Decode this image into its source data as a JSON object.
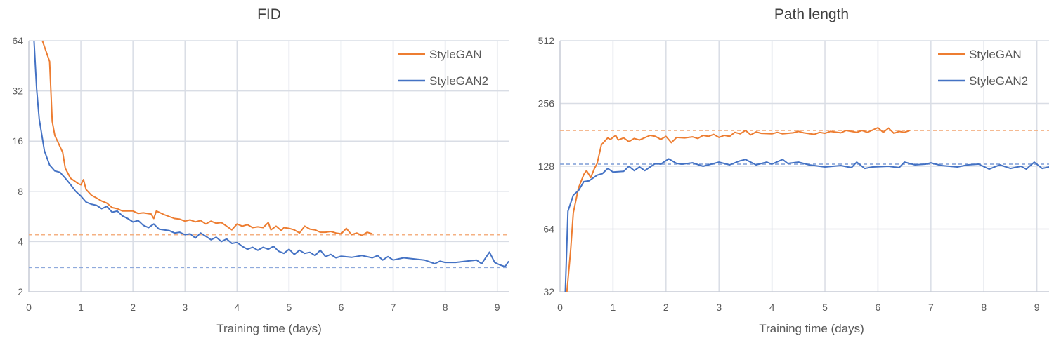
{
  "chart_data": [
    {
      "type": "line",
      "title": "FID",
      "xlabel": "Training time (days)",
      "ylabel": "",
      "xlim": [
        0,
        9.22
      ],
      "ylim": [
        2,
        64
      ],
      "yscale": "log2",
      "xticks": [
        "0",
        "1",
        "2",
        "3",
        "4",
        "5",
        "6",
        "7",
        "8",
        "9"
      ],
      "yticks": [
        "2",
        "4",
        "8",
        "16",
        "32",
        "64"
      ],
      "grid": true,
      "legend": "top-right",
      "series": [
        {
          "name": "StyleGAN",
          "color": "#ED7D31",
          "x": [
            0.26,
            0.4,
            0.45,
            0.5,
            0.65,
            0.7,
            0.8,
            0.95,
            1.0,
            1.05,
            1.1,
            1.2,
            1.3,
            1.4,
            1.5,
            1.6,
            1.7,
            1.8,
            2.0,
            2.1,
            2.2,
            2.35,
            2.4,
            2.45,
            2.6,
            2.8,
            2.9,
            3.0,
            3.1,
            3.2,
            3.3,
            3.4,
            3.5,
            3.6,
            3.7,
            3.8,
            3.9,
            4.0,
            4.1,
            4.2,
            4.3,
            4.4,
            4.5,
            4.6,
            4.65,
            4.75,
            4.85,
            4.9,
            5.0,
            5.1,
            5.2,
            5.3,
            5.4,
            5.5,
            5.6,
            5.7,
            5.8,
            5.9,
            6.0,
            6.1,
            6.2,
            6.3,
            6.4,
            6.5,
            6.6
          ],
          "y": [
            64,
            48,
            21,
            17.3,
            13.7,
            11,
            9.6,
            8.9,
            8.75,
            9.4,
            8.2,
            7.6,
            7.3,
            7.0,
            6.8,
            6.4,
            6.3,
            6.1,
            6.1,
            5.9,
            5.95,
            5.85,
            5.5,
            6.1,
            5.8,
            5.5,
            5.45,
            5.3,
            5.4,
            5.25,
            5.35,
            5.1,
            5.3,
            5.15,
            5.2,
            4.95,
            4.7,
            5.1,
            4.95,
            5.05,
            4.85,
            4.9,
            4.85,
            5.2,
            4.7,
            4.95,
            4.65,
            4.85,
            4.8,
            4.7,
            4.5,
            4.95,
            4.75,
            4.7,
            4.55,
            4.55,
            4.6,
            4.5,
            4.45,
            4.8,
            4.4,
            4.5,
            4.35,
            4.55,
            4.45
          ]
        },
        {
          "name": "StyleGAN2",
          "color": "#4472C4",
          "x": [
            0.1,
            0.15,
            0.2,
            0.3,
            0.4,
            0.5,
            0.6,
            0.7,
            0.8,
            0.9,
            1.0,
            1.1,
            1.2,
            1.3,
            1.4,
            1.5,
            1.6,
            1.7,
            1.8,
            1.9,
            2.0,
            2.1,
            2.2,
            2.3,
            2.4,
            2.5,
            2.6,
            2.7,
            2.8,
            2.9,
            3.0,
            3.1,
            3.2,
            3.3,
            3.4,
            3.5,
            3.6,
            3.7,
            3.8,
            3.9,
            4.0,
            4.1,
            4.2,
            4.3,
            4.4,
            4.5,
            4.6,
            4.7,
            4.8,
            4.9,
            5.0,
            5.1,
            5.2,
            5.3,
            5.4,
            5.5,
            5.6,
            5.7,
            5.8,
            5.9,
            6.0,
            6.2,
            6.4,
            6.6,
            6.7,
            6.8,
            6.9,
            7.0,
            7.2,
            7.4,
            7.6,
            7.8,
            7.9,
            8.0,
            8.2,
            8.4,
            8.6,
            8.7,
            8.85,
            8.95,
            9.05,
            9.15,
            9.22
          ],
          "y": [
            64,
            33,
            21.7,
            14,
            11.5,
            10.6,
            10.4,
            9.6,
            8.8,
            8.0,
            7.5,
            6.9,
            6.7,
            6.6,
            6.3,
            6.5,
            6.0,
            6.1,
            5.7,
            5.5,
            5.24,
            5.35,
            5.0,
            4.85,
            5.1,
            4.75,
            4.7,
            4.65,
            4.5,
            4.55,
            4.4,
            4.45,
            4.2,
            4.5,
            4.3,
            4.1,
            4.25,
            4.0,
            4.15,
            3.9,
            3.95,
            3.75,
            3.6,
            3.7,
            3.55,
            3.7,
            3.6,
            3.75,
            3.5,
            3.4,
            3.6,
            3.35,
            3.55,
            3.4,
            3.45,
            3.3,
            3.55,
            3.25,
            3.35,
            3.2,
            3.27,
            3.22,
            3.3,
            3.2,
            3.3,
            3.1,
            3.25,
            3.1,
            3.2,
            3.15,
            3.1,
            2.95,
            3.05,
            3.0,
            3.0,
            3.05,
            3.1,
            2.95,
            3.46,
            3.0,
            2.9,
            2.83,
            3.05
          ]
        }
      ],
      "reference_lines": [
        {
          "series": "StyleGAN",
          "y": 4.4,
          "style": "dashed",
          "color": "#F4B183"
        },
        {
          "series": "StyleGAN2",
          "y": 2.8,
          "style": "dashed",
          "color": "#8FAADC"
        }
      ]
    },
    {
      "type": "line",
      "title": "Path length",
      "xlabel": "Training time (days)",
      "ylabel": "",
      "xlim": [
        0,
        9.23
      ],
      "ylim": [
        32,
        512
      ],
      "yscale": "log2",
      "xticks": [
        "0",
        "1",
        "2",
        "3",
        "4",
        "5",
        "6",
        "7",
        "8",
        "9"
      ],
      "yticks": [
        "32",
        "64",
        "128",
        "256",
        "512"
      ],
      "grid": true,
      "legend": "top-right",
      "series": [
        {
          "name": "StyleGAN",
          "color": "#ED7D31",
          "x": [
            0.13,
            0.2,
            0.25,
            0.35,
            0.45,
            0.5,
            0.58,
            0.65,
            0.7,
            0.78,
            0.9,
            0.95,
            1.05,
            1.1,
            1.2,
            1.3,
            1.4,
            1.5,
            1.7,
            1.8,
            1.9,
            2.0,
            2.1,
            2.2,
            2.35,
            2.5,
            2.6,
            2.7,
            2.8,
            2.9,
            3.0,
            3.1,
            3.2,
            3.3,
            3.4,
            3.5,
            3.6,
            3.7,
            3.8,
            4.0,
            4.1,
            4.2,
            4.4,
            4.5,
            4.6,
            4.8,
            4.9,
            5.0,
            5.1,
            5.3,
            5.4,
            5.5,
            5.6,
            5.7,
            5.8,
            6.0,
            6.1,
            6.2,
            6.3,
            6.4,
            6.5,
            6.6
          ],
          "y": [
            32,
            50.7,
            76.6,
            101,
            117,
            122,
            113,
            125,
            132,
            162,
            175,
            172,
            180,
            171,
            175,
            168,
            174,
            171,
            180,
            178,
            172,
            178,
            166,
            176,
            175,
            177,
            174,
            180,
            178,
            182,
            176,
            180,
            178,
            186,
            183,
            190,
            181,
            187,
            184,
            183,
            186,
            183,
            185,
            188,
            185,
            182,
            186,
            184,
            188,
            185,
            190,
            188,
            186,
            190,
            186,
            196,
            186,
            195,
            184,
            188,
            186,
            190
          ]
        },
        {
          "name": "StyleGAN2",
          "color": "#4472C4",
          "x": [
            0.1,
            0.15,
            0.25,
            0.35,
            0.45,
            0.55,
            0.7,
            0.8,
            0.9,
            1.0,
            1.2,
            1.3,
            1.4,
            1.5,
            1.6,
            1.7,
            1.8,
            1.9,
            2.05,
            2.2,
            2.3,
            2.5,
            2.7,
            3.0,
            3.2,
            3.4,
            3.5,
            3.7,
            3.9,
            4.0,
            4.2,
            4.3,
            4.5,
            4.7,
            4.9,
            5.0,
            5.3,
            5.5,
            5.6,
            5.75,
            5.9,
            6.2,
            6.4,
            6.5,
            6.7,
            6.9,
            7.0,
            7.2,
            7.5,
            7.7,
            7.9,
            8.1,
            8.3,
            8.5,
            8.7,
            8.8,
            8.95,
            9.1,
            9.23
          ],
          "y": [
            32,
            78,
            93,
            98,
            108,
            109,
            116,
            118,
            125,
            120,
            121,
            128,
            122,
            127,
            122,
            127,
            132,
            131,
            139,
            132,
            131,
            133,
            128,
            134,
            130,
            136,
            138,
            130,
            134,
            131,
            138,
            132,
            134,
            130,
            128,
            127,
            129,
            126,
            134,
            125,
            127,
            128,
            126,
            134,
            130,
            131,
            133,
            129,
            127,
            130,
            131,
            124,
            130,
            125,
            128,
            124,
            134,
            125,
            127
          ]
        }
      ],
      "reference_lines": [
        {
          "series": "StyleGAN",
          "y": 190,
          "style": "dashed",
          "color": "#F4B183"
        },
        {
          "series": "StyleGAN2",
          "y": 131,
          "style": "dashed",
          "color": "#8FAADC"
        }
      ]
    }
  ]
}
